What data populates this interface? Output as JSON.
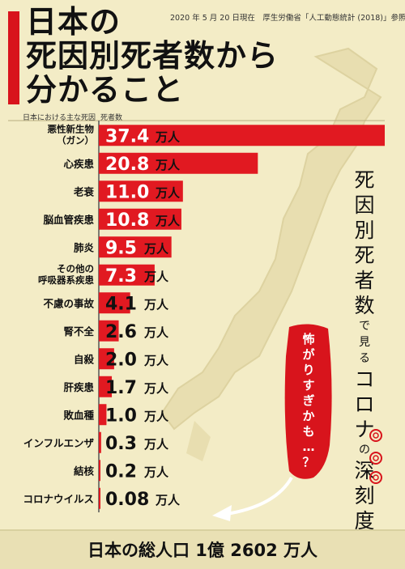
{
  "header": {
    "title_lines": [
      "日本の",
      "死因別死者数から",
      "分かること"
    ],
    "source": "2020 年 5 月 20 日現在　厚生労働省「人工動態統計 (2018)」参照"
  },
  "columns": {
    "cause": "日本における主な死因",
    "deaths": "死者数"
  },
  "side_text": [
    "死",
    "因",
    "別",
    "死",
    "者",
    "数",
    "で",
    "見",
    "る",
    "コ",
    "ロ",
    "ナ",
    "の",
    "深",
    "刻",
    "度"
  ],
  "callout": [
    "怖",
    "が",
    "り",
    "す",
    "ぎ",
    "か",
    "も",
    "…",
    "？"
  ],
  "footer": "日本の総人口 1億 2602 万人",
  "colors": {
    "bar": "#e11921",
    "accent": "#d8141c",
    "background": "#f3ecc6"
  },
  "chart_data": {
    "type": "bar",
    "orientation": "horizontal",
    "unit": "万人",
    "categories": [
      "悪性新生物\n（ガン）",
      "心疾患",
      "老衰",
      "脳血管疾患",
      "肺炎",
      "その他の\n呼吸器系疾患",
      "不慮の事故",
      "腎不全",
      "自殺",
      "肝疾患",
      "敗血種",
      "インフルエンザ",
      "結核",
      "コロナウイルス"
    ],
    "value_labels": [
      "37.4",
      "20.8",
      "11.0",
      "10.8",
      "9.5",
      "7.3",
      "4.1",
      "2.6",
      "2.0",
      "1.7",
      "1.0",
      "0.3",
      "0.2",
      "0.08"
    ],
    "values": [
      37.4,
      20.8,
      11.0,
      10.8,
      9.5,
      7.3,
      4.1,
      2.6,
      2.0,
      1.7,
      1.0,
      0.3,
      0.2,
      0.08
    ],
    "xlim": [
      0,
      37.4
    ]
  }
}
